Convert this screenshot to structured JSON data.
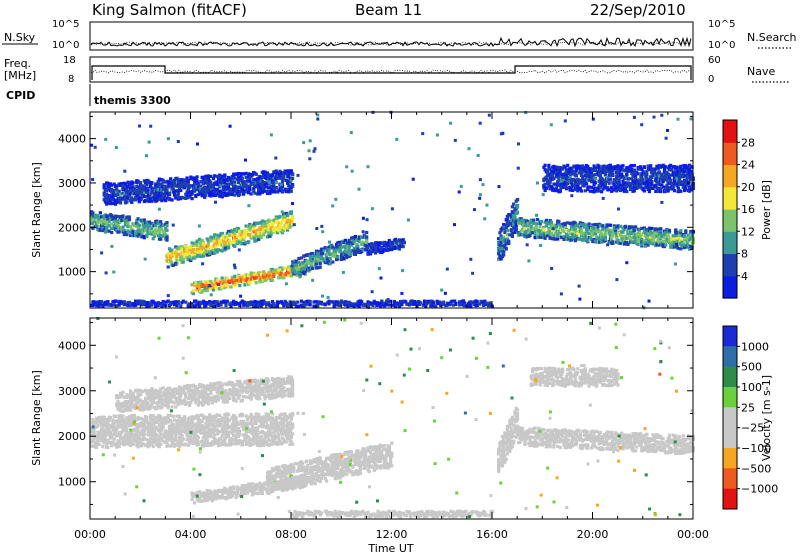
{
  "header": {
    "station": "King Salmon (fitACF)",
    "beam": "Beam 11",
    "date": "22/Sep/2010"
  },
  "nsky_panel": {
    "left_label": "N.Sky",
    "right_label": "N.Search",
    "ticks_left": [
      "10^5",
      "10^0"
    ],
    "ticks_right": [
      "10^5",
      "10^0"
    ]
  },
  "freq_panel": {
    "left_label_1": "Freq.",
    "left_label_2": "[MHz]",
    "right_label": "Nave",
    "ticks_left": [
      "18",
      "8"
    ],
    "ticks_right": [
      "60",
      "0"
    ]
  },
  "cpid": {
    "label": "CPID",
    "mode": "themis 3300"
  },
  "x_axis": {
    "label": "Time UT",
    "ticks": [
      "00:00",
      "04:00",
      "08:00",
      "12:00",
      "16:00",
      "20:00",
      "00:00"
    ]
  },
  "chart_data": [
    {
      "type": "heatmap",
      "title": "",
      "xlabel": "Time UT",
      "ylabel": "Slant Range [km]",
      "x_range_hours": [
        0,
        24
      ],
      "ylim": [
        180,
        4600
      ],
      "y_ticks": [
        "1000",
        "2000",
        "3000",
        "4000"
      ],
      "colorbar": {
        "label": "Power [dB]",
        "tick_labels": [
          "4",
          "8",
          "12",
          "16",
          "20",
          "24",
          "28"
        ],
        "range": [
          0,
          32
        ],
        "colors": [
          "#0b1de0",
          "#1f3fb0",
          "#3b9a96",
          "#7cc46a",
          "#f4e73a",
          "#f5a623",
          "#ee5a1f",
          "#e21212"
        ]
      },
      "regions": [
        {
          "t0": 0.0,
          "t1": 3.0,
          "r_start": 2150,
          "r_end": 1900,
          "width": 420,
          "value": 14
        },
        {
          "t0": 3.0,
          "t1": 8.0,
          "r_start": 1300,
          "r_end": 2150,
          "width": 420,
          "value": 22
        },
        {
          "t0": 4.0,
          "t1": 8.5,
          "r_start": 620,
          "r_end": 1050,
          "width": 250,
          "value": 28
        },
        {
          "t0": 8.0,
          "t1": 11.0,
          "r_start": 1050,
          "r_end": 1700,
          "width": 420,
          "value": 12
        },
        {
          "t0": 11.0,
          "t1": 12.5,
          "r_start": 1500,
          "r_end": 1650,
          "width": 250,
          "value": 6
        },
        {
          "t0": 16.2,
          "t1": 17.0,
          "r_start": 1500,
          "r_end": 2400,
          "width": 700,
          "value": 10
        },
        {
          "t0": 17.0,
          "t1": 24.0,
          "r_start": 2000,
          "r_end": 1700,
          "width": 420,
          "value": 15
        },
        {
          "t0": 0.5,
          "t1": 8.0,
          "r_start": 2750,
          "r_end": 3050,
          "width": 500,
          "value": 6
        },
        {
          "t0": 18.0,
          "t1": 24.0,
          "r_start": 3100,
          "r_end": 3100,
          "width": 600,
          "value": 6
        },
        {
          "t0": 0.0,
          "t1": 16.0,
          "r_start": 280,
          "r_end": 280,
          "width": 120,
          "value": 5
        }
      ]
    },
    {
      "type": "heatmap",
      "title": "",
      "xlabel": "Time UT",
      "ylabel": "Slant Range [km]",
      "x_range_hours": [
        0,
        24
      ],
      "ylim": [
        180,
        4600
      ],
      "y_ticks": [
        "1000",
        "2000",
        "3000",
        "4000"
      ],
      "colorbar": {
        "label": "Velocity [m s-1]",
        "tick_labels": [
          "1000",
          "500",
          "100",
          "25",
          "−25",
          "−100",
          "−500",
          "−1000"
        ],
        "range": [
          -1200,
          1200
        ],
        "colors": [
          "#1a2bd6",
          "#2f6ea8",
          "#2e8c4a",
          "#6bd13b",
          "#c8c8c8",
          "#c8c8c8",
          "#f5a623",
          "#ee5a1f",
          "#e21212"
        ]
      },
      "regions": [
        {
          "t0": 0.0,
          "t1": 8.0,
          "r_start": 2100,
          "r_end": 2150,
          "width": 700,
          "value": 0
        },
        {
          "t0": 4.0,
          "t1": 8.5,
          "r_start": 640,
          "r_end": 1000,
          "width": 250,
          "value": 60
        },
        {
          "t0": 7.0,
          "t1": 12.0,
          "r_start": 1000,
          "r_end": 1600,
          "width": 550,
          "value": 80
        },
        {
          "t0": 16.2,
          "t1": 17.0,
          "r_start": 1500,
          "r_end": 2400,
          "width": 700,
          "value": 0
        },
        {
          "t0": 17.0,
          "t1": 24.0,
          "r_start": 2000,
          "r_end": 1800,
          "width": 400,
          "value": 0
        },
        {
          "t0": 1.0,
          "t1": 8.0,
          "r_start": 2750,
          "r_end": 3100,
          "width": 450,
          "value": -300
        },
        {
          "t0": 17.5,
          "t1": 21.0,
          "r_start": 3300,
          "r_end": 3300,
          "width": 400,
          "value": -300
        },
        {
          "t0": 8.0,
          "t1": 16.0,
          "r_start": 290,
          "r_end": 290,
          "width": 120,
          "value": 40
        }
      ]
    }
  ]
}
